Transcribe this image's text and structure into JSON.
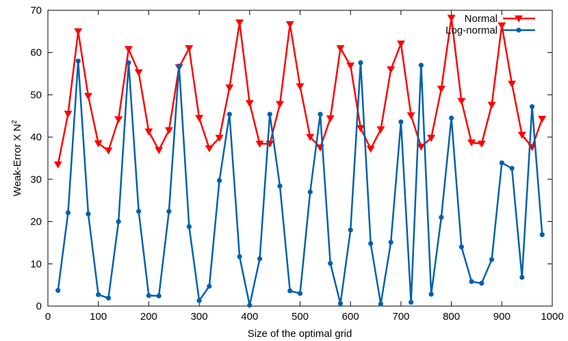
{
  "chart_data": {
    "type": "line",
    "title": "",
    "xlabel": "Size of the optimal grid",
    "ylabel_text": "Weak-Error X N",
    "ylabel_superscript": "2",
    "xlim": [
      0,
      1000
    ],
    "ylim": [
      0,
      70
    ],
    "xticks": [
      0,
      100,
      200,
      300,
      400,
      500,
      600,
      700,
      800,
      900,
      1000
    ],
    "yticks": [
      0,
      10,
      20,
      30,
      40,
      50,
      60,
      70
    ],
    "grid": false,
    "legend_position": "top-right",
    "x": [
      20,
      40,
      60,
      80,
      100,
      120,
      140,
      160,
      180,
      200,
      220,
      240,
      260,
      280,
      300,
      320,
      340,
      360,
      380,
      400,
      420,
      440,
      460,
      480,
      500,
      520,
      540,
      560,
      580,
      600,
      620,
      640,
      660,
      680,
      700,
      720,
      740,
      760,
      780,
      800,
      820,
      840,
      860,
      880,
      900,
      920,
      940,
      960,
      980
    ],
    "series": [
      {
        "name": "Normal",
        "color": "#ff0000",
        "marker": "triangle-down",
        "values": [
          33.5,
          45.5,
          65,
          49.7,
          38.5,
          36.8,
          44.2,
          60.8,
          55.3,
          41.3,
          36.9,
          41.6,
          56.5,
          61,
          44.5,
          37.3,
          39.8,
          51.7,
          67.1,
          48,
          38.4,
          38.4,
          47.8,
          66.7,
          52,
          40,
          37.5,
          44.4,
          61,
          56.9,
          42.1,
          37.2,
          41.8,
          56,
          62.1,
          45.1,
          37.7,
          39.8,
          51.4,
          68.2,
          48.5,
          38.7,
          38.4,
          47.6,
          66.4,
          52.6,
          40.5,
          37.6,
          44.3
        ]
      },
      {
        "name": "Log-normal",
        "color": "#0060ad",
        "marker": "circle",
        "values": [
          3.7,
          22.1,
          58,
          21.8,
          2.7,
          1.9,
          20,
          57.6,
          22.4,
          2.5,
          2.4,
          22.4,
          56.8,
          18.8,
          1.3,
          4.7,
          29.7,
          45.4,
          11.7,
          0.2,
          11.2,
          45.4,
          28.4,
          3.6,
          3,
          27,
          45.4,
          10.1,
          0.6,
          18,
          57.6,
          14.8,
          0.5,
          15.1,
          43.6,
          0.9,
          57,
          2.8,
          21,
          44.5,
          14,
          5.8,
          5.4,
          11,
          33.9,
          32.6,
          6.8,
          47.2,
          16.9
        ]
      }
    ]
  }
}
